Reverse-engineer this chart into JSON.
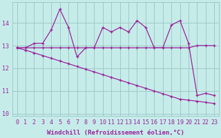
{
  "xlabel": "Windchill (Refroidissement éolien,°C)",
  "bg_color": "#c6ecea",
  "grid_color": "#9ec8c6",
  "line_color": "#992299",
  "x_values": [
    0,
    1,
    2,
    3,
    4,
    5,
    6,
    7,
    8,
    9,
    10,
    11,
    12,
    13,
    14,
    15,
    16,
    17,
    18,
    19,
    20,
    21,
    22,
    23
  ],
  "y_curve1": [
    12.9,
    12.9,
    13.1,
    13.1,
    13.7,
    14.6,
    13.8,
    12.5,
    12.9,
    12.9,
    13.8,
    13.6,
    13.8,
    13.6,
    14.1,
    13.8,
    12.9,
    12.9,
    13.9,
    14.1,
    13.1,
    10.8,
    10.9,
    10.8
  ],
  "y_line_flat": [
    12.9,
    12.9,
    12.9,
    12.9,
    12.9,
    12.9,
    12.9,
    12.9,
    12.9,
    12.9,
    12.9,
    12.9,
    12.9,
    12.9,
    12.9,
    12.9,
    12.9,
    12.9,
    12.9,
    12.9,
    12.9,
    13.0,
    13.0,
    13.0
  ],
  "y_line_desc": [
    12.9,
    12.8,
    12.68,
    12.56,
    12.44,
    12.32,
    12.2,
    12.08,
    11.96,
    11.84,
    11.72,
    11.6,
    11.48,
    11.36,
    11.24,
    11.12,
    11.0,
    10.88,
    10.76,
    10.64,
    10.6,
    10.55,
    10.5,
    10.45
  ],
  "ylim": [
    9.9,
    14.9
  ],
  "xlim": [
    -0.5,
    23.5
  ],
  "yticks": [
    10,
    11,
    12,
    13,
    14
  ],
  "xticks": [
    0,
    1,
    2,
    3,
    4,
    5,
    6,
    7,
    8,
    9,
    10,
    11,
    12,
    13,
    14,
    15,
    16,
    17,
    18,
    19,
    20,
    21,
    22,
    23
  ],
  "marker": "+",
  "linewidth": 0.9,
  "markersize": 3,
  "fontsize_label": 6.5,
  "fontsize_tick": 6.0
}
